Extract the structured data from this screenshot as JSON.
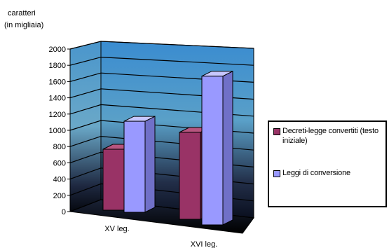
{
  "chart_data": {
    "type": "bar",
    "title": "",
    "ylabel_lines": [
      "caratteri",
      "(in migliaia)"
    ],
    "xlabel": "",
    "categories": [
      "XV leg.",
      "XVI leg."
    ],
    "series": [
      {
        "name": "Decreti-legge convertiti (testo iniziale)",
        "values": [
          750,
          1070
        ],
        "color": "#993366"
      },
      {
        "name": "Leggi di conversione",
        "values": [
          1120,
          1830
        ],
        "color": "#9999ff"
      }
    ],
    "ylim": [
      0,
      2000
    ],
    "yticks": [
      "2000",
      "1800",
      "1600",
      "1400",
      "1200",
      "1000",
      "800",
      "600",
      "400",
      "200",
      "0"
    ],
    "grid": true,
    "legend_position": "right",
    "three_d": true
  }
}
